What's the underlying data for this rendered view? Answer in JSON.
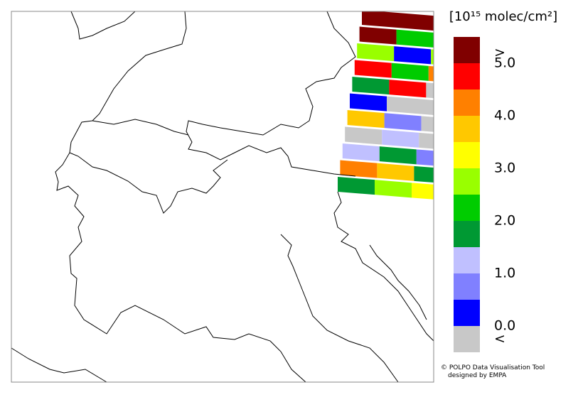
{
  "legend": {
    "unit": "[10¹⁵ molec/cm²]",
    "colors": [
      "#800000",
      "#ff0000",
      "#ff8000",
      "#ffc800",
      "#ffff00",
      "#99ff00",
      "#00cc00",
      "#009933",
      "#c0c0ff",
      "#8080ff",
      "#0000ff",
      "#c8c8c8"
    ],
    "labels": [
      ">",
      "5.0",
      "4.0",
      "3.0",
      "2.0",
      "1.0",
      "0.0",
      "<"
    ]
  },
  "credits": [
    "© POLPO Data Visualisation Tool",
    "designed by EMPA"
  ]
}
